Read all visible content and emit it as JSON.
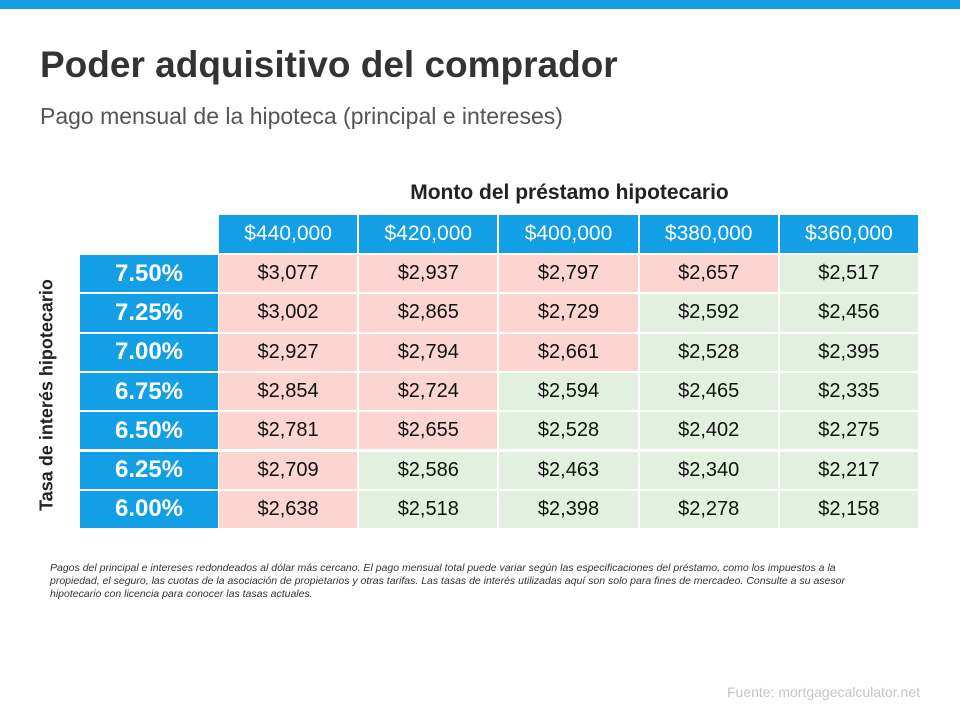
{
  "header": {
    "title": "Poder adquisitivo del comprador",
    "subtitle": "Pago mensual de la hipoteca (principal e intereses)"
  },
  "table": {
    "column_title": "Monto del préstamo hipotecario",
    "row_title": "Tasa de interés hipotecario",
    "header_color": "#129fe6",
    "columns": [
      "$440,000",
      "$420,000",
      "$400,000",
      "$380,000",
      "$360,000"
    ],
    "rows": [
      {
        "rate": "7.50%",
        "cells": [
          "$3,077",
          "$2,937",
          "$2,797",
          "$2,657",
          "$2,517"
        ],
        "colors": [
          "#fdd5d0",
          "#fdd5d0",
          "#fdd5d0",
          "#fdd5d0",
          "#e2f1df"
        ]
      },
      {
        "rate": "7.25%",
        "cells": [
          "$3,002",
          "$2,865",
          "$2,729",
          "$2,592",
          "$2,456"
        ],
        "colors": [
          "#fdd5d0",
          "#fdd5d0",
          "#fdd5d0",
          "#e2f1df",
          "#e2f1df"
        ]
      },
      {
        "rate": "7.00%",
        "cells": [
          "$2,927",
          "$2,794",
          "$2,661",
          "$2,528",
          "$2,395"
        ],
        "colors": [
          "#fdd5d0",
          "#fdd5d0",
          "#fdd5d0",
          "#e2f1df",
          "#e2f1df"
        ]
      },
      {
        "rate": "6.75%",
        "cells": [
          "$2,854",
          "$2,724",
          "$2,594",
          "$2,465",
          "$2,335"
        ],
        "colors": [
          "#fdd5d0",
          "#fdd5d0",
          "#e2f1df",
          "#e2f1df",
          "#e2f1df"
        ]
      },
      {
        "rate": "6.50%",
        "cells": [
          "$2,781",
          "$2,655",
          "$2,528",
          "$2,402",
          "$2,275"
        ],
        "colors": [
          "#fdd5d0",
          "#fdd5d0",
          "#e2f1df",
          "#e2f1df",
          "#e2f1df"
        ]
      },
      {
        "rate": "6.25%",
        "cells": [
          "$2,709",
          "$2,586",
          "$2,463",
          "$2,340",
          "$2,217"
        ],
        "colors": [
          "#fdd5d0",
          "#e2f1df",
          "#e2f1df",
          "#e2f1df",
          "#e2f1df"
        ]
      },
      {
        "rate": "6.00%",
        "cells": [
          "$2,638",
          "$2,518",
          "$2,398",
          "$2,278",
          "$2,158"
        ],
        "colors": [
          "#fdd5d0",
          "#e2f1df",
          "#e2f1df",
          "#e2f1df",
          "#e2f1df"
        ]
      }
    ]
  },
  "footnote": "Pagos del principal e intereses redondeados al dólar más cercano. El pago mensual total puede variar según las especificaciones del préstamo, como los impuestos a la propiedad, el seguro, las cuotas de la asociación de propietarios y otras tarifas. Las tasas de interés utilizadas aquí son solo para fines de mercadeo. Consulte a su asesor hipotecario con licencia para conocer las tasas actuales.",
  "source": "Fuente:  mortgagecalculator.net"
}
